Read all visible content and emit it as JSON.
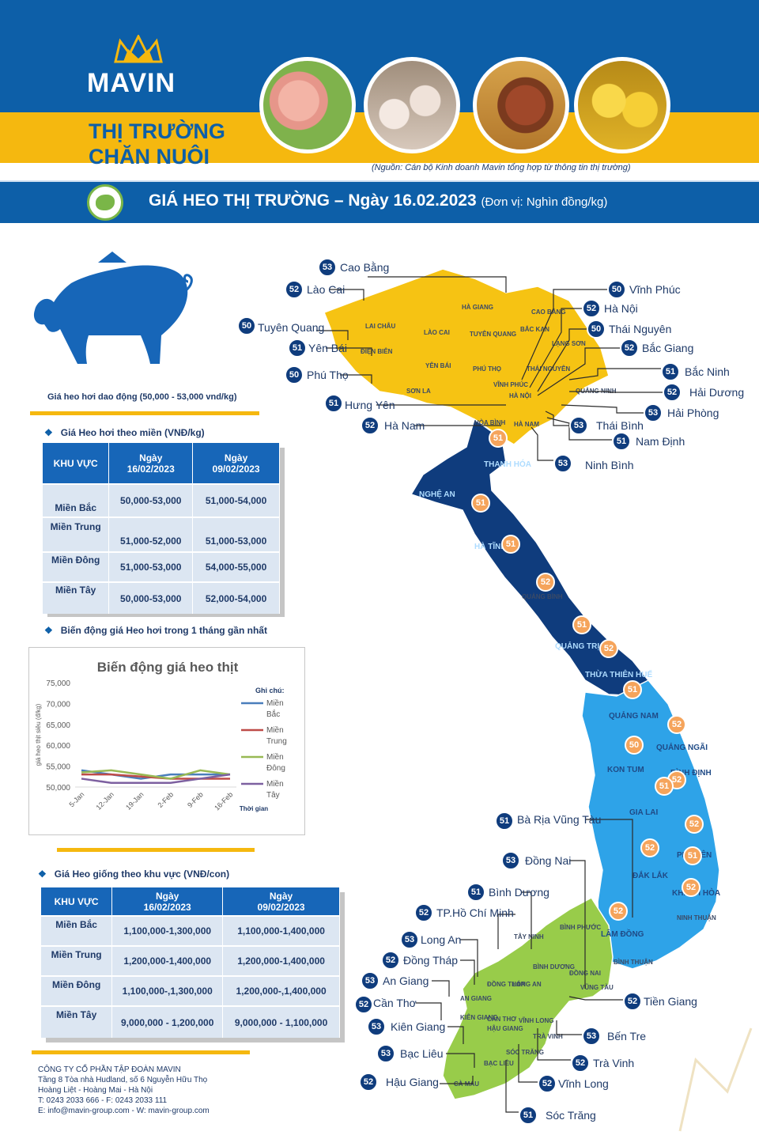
{
  "header": {
    "brand": "MAVIN",
    "title_line1": "THỊ TRƯỜNG",
    "title_line2": "CHĂN NUÔI",
    "source": "(Nguồn: Cán bộ Kinh doanh Mavin tổng hợp từ thông tin thị trường)",
    "banner_title": "GIÁ HEO THỊ TRƯỜNG – Ngày 16.02.2023",
    "banner_unit": "(Đơn vị: Nghìn đồng/kg)"
  },
  "left": {
    "range_note": "Giá heo hơi dao động (50,000 - 53,000 vnd/kg)",
    "section1": "Giá Heo hơi theo miền (VNĐ/kg)",
    "section2": "Biến động giá Heo hơi trong 1 tháng gần nhất",
    "section3": "Giá Heo giống theo khu vực (VNĐ/con)"
  },
  "table_live": {
    "headers": [
      "KHU VỰC",
      "Ngày\n16/02/2023",
      "Ngày\n09/02/2023"
    ],
    "rows": [
      [
        "Miền Bắc",
        "50,000-53,000",
        "51,000-54,000"
      ],
      [
        "Miền Trung",
        "51,000-52,000",
        "51,000-53,000"
      ],
      [
        "Miền Đông",
        "51,000-53,000",
        "54,000-55,000"
      ],
      [
        "Miền Tây",
        "50,000-53,000",
        "52,000-54,000"
      ]
    ]
  },
  "table_breed": {
    "headers": [
      "KHU VỰC",
      "Ngày\n16/02/2023",
      "Ngày\n09/02/2023"
    ],
    "rows": [
      [
        "Miền Bắc",
        "1,100,000-1,300,000",
        "1,100,000-1,400,000"
      ],
      [
        "Miền Trung",
        "1,200,000-1,400,000",
        "1,200,000-1,400,000"
      ],
      [
        "Miền Đông",
        "1,100,000-,1,300,000",
        "1,200,000-,1,400,000"
      ],
      [
        "Miền Tây",
        "9,000,000 - 1,200,000",
        "9,000,000 - 1,100,000"
      ]
    ]
  },
  "chart_data": {
    "type": "line",
    "title": "Biến động giá heo thịt",
    "ylabel": "giá heo thịt siêu (đ/kg)",
    "xlabel": "Thời gian",
    "legend_title": "Ghi chú:",
    "legend_position": "right",
    "x": [
      "5-Jan",
      "12-Jan",
      "19-Jan",
      "2-Feb",
      "9-Feb",
      "16-Feb"
    ],
    "ylim": [
      50000,
      75000
    ],
    "yticks": [
      "50,000",
      "55,000",
      "60,000",
      "65,000",
      "70,000",
      "75,000"
    ],
    "series": [
      {
        "name": "Miền Bắc",
        "color": "#4a7ebb",
        "values": [
          54000,
          53000,
          52000,
          53000,
          53000,
          53000
        ]
      },
      {
        "name": "Miền Trung",
        "color": "#be4b48",
        "values": [
          53000,
          53000,
          52500,
          52000,
          52000,
          52000
        ]
      },
      {
        "name": "Miền Đông",
        "color": "#98b954",
        "values": [
          53500,
          54000,
          53000,
          52000,
          54000,
          53000
        ]
      },
      {
        "name": "Miền Tây",
        "color": "#7d60a0",
        "values": [
          52000,
          51000,
          51000,
          51000,
          52000,
          53000
        ]
      }
    ]
  },
  "map": {
    "north": [
      {
        "name": "Cao Bằng",
        "price": "53"
      },
      {
        "name": "Lào Cai",
        "price": "52"
      },
      {
        "name": "Tuyên Quang",
        "price": "50"
      },
      {
        "name": "Yên Bái",
        "price": "51"
      },
      {
        "name": "Phú Thọ",
        "price": "50"
      },
      {
        "name": "Hưng Yên",
        "price": "51"
      },
      {
        "name": "Hà Nam",
        "price": "52"
      },
      {
        "name": "Vĩnh Phúc",
        "price": "50"
      },
      {
        "name": "Hà Nội",
        "price": "52"
      },
      {
        "name": "Thái Nguyên",
        "price": "50"
      },
      {
        "name": "Bắc Giang",
        "price": "52"
      },
      {
        "name": "Bắc Ninh",
        "price": "51"
      },
      {
        "name": "Hải Dương",
        "price": "52"
      },
      {
        "name": "Hải Phòng",
        "price": "53"
      },
      {
        "name": "Thái Bình",
        "price": "53"
      },
      {
        "name": "Nam Định",
        "price": "51"
      },
      {
        "name": "Ninh Bình",
        "price": "53"
      }
    ],
    "central": [
      "51",
      "51",
      "51",
      "52",
      "51",
      "52",
      "51",
      "52",
      "50",
      "52",
      "51",
      "52",
      "52",
      "51",
      "52",
      "52"
    ],
    "south": [
      {
        "name": "Bà Rịa Vũng Tàu",
        "price": "51"
      },
      {
        "name": "Đồng Nai",
        "price": "53"
      },
      {
        "name": "Bình Dương",
        "price": "51"
      },
      {
        "name": "TP.Hồ Chí Minh",
        "price": "52"
      },
      {
        "name": "Long An",
        "price": "53"
      },
      {
        "name": "Đồng Tháp",
        "price": "52"
      },
      {
        "name": "An Giang",
        "price": "53"
      },
      {
        "name": "Cần Thơ",
        "price": "52"
      },
      {
        "name": "Kiên Giang",
        "price": "53"
      },
      {
        "name": "Bạc Liêu",
        "price": "53"
      },
      {
        "name": "Hậu Giang",
        "price": "52"
      },
      {
        "name": "Tiền Giang",
        "price": "52"
      },
      {
        "name": "Bến Tre",
        "price": "53"
      },
      {
        "name": "Trà Vinh",
        "price": "52"
      },
      {
        "name": "Vĩnh Long",
        "price": "52"
      },
      {
        "name": "Sóc Trăng",
        "price": "51"
      }
    ],
    "region_labels": {
      "thanh_hoa": "THANH HÓA",
      "nghe_an": "NGHỆ AN",
      "ha_tinh": "HÀ TĨNH",
      "quang_binh": "QUẢNG BÌNH",
      "quang_tri": "QUẢNG TRỊ",
      "hue": "THỪA THIÊN HUẾ",
      "quang_nam": "QUẢNG NAM",
      "quang_ngai": "QUẢNG NGÃI",
      "kon_tum": "KON TUM",
      "binh_dinh": "BÌNH ĐỊNH",
      "gia_lai": "GIA LAI",
      "phu_yen": "PHÚ YÊN",
      "dak_lak": "ĐẮK LẮK",
      "khanh_hoa": "KHÁNH HÒA",
      "lam_dong": "LÂM ĐỒNG",
      "ninh_thuan": "NINH THUẬN",
      "binh_thuan": "BÌNH THUẬN",
      "ha_giang": "HÀ GIANG",
      "cao_bang_m": "CAO BẰNG",
      "lai_chau": "LAI CHÂU",
      "lao_cai_m": "LÀO CAI",
      "tuyen_quang_m": "TUYÊN QUANG",
      "bac_kan": "BẮC KẠN",
      "lang_son": "LẠNG SƠN",
      "dien_bien": "ĐIỆN BIÊN",
      "yen_bai_m": "YÊN BÁI",
      "son_la": "SƠN LA",
      "phu_tho_m": "PHÚ THỌ",
      "vinh_phuc_m": "VĨNH PHÚC",
      "thai_nguyen_m": "THÁI NGUYÊN",
      "ha_noi_m": "HÀ NỘI",
      "quang_ninh": "QUẢNG NINH",
      "hoa_binh": "HÒA BÌNH",
      "ha_nam_m": "HÀ NAM",
      "binh_phuoc": "BÌNH PHƯỚC",
      "tay_ninh": "TÂY NINH",
      "dong_nai_m": "ĐỒNG NAI",
      "long_an_m": "LONG AN",
      "dong_thap_m": "ĐỒNG THÁP",
      "an_giang_m": "AN GIANG",
      "kien_giang_m": "KIÊN GIANG",
      "can_tho_m": "CẦN THƠ",
      "vinh_long_m": "VĨNH LONG",
      "tra_vinh_m": "TRÀ VINH",
      "hau_giang_m": "HẬU GIANG",
      "soc_trang_m": "SÓC TRĂNG",
      "bac_lieu_m": "BẠC LIÊU",
      "ca_mau": "CÀ MAU",
      "binh_duong_m": "BÌNH DƯƠNG",
      "vung_tau_m": "VŨNG TÀU"
    }
  },
  "footer": {
    "company": "CÔNG TY CỔ PHẦN TẬP ĐOÀN MAVIN",
    "address1": "Tầng 8 Tòa nhà Hudland, số 6 Nguyễn Hữu Thọ",
    "address2": "Hoàng Liệt - Hoàng Mai - Hà Nội",
    "phone": "T: 0243 2033 666 - F: 0243 2033 111",
    "web": "E: info@mavin-group.com -  W: mavin-group.com"
  },
  "colors": {
    "brand_blue": "#0d5fa8",
    "brand_yellow": "#f5b80f",
    "north_region": "#f6c313",
    "central_region": "#0f3c7d",
    "highlands_region": "#2ea3e8",
    "south_region": "#98cc4a",
    "price_pin_dark": "#0f3c7d",
    "price_pin_orange": "#f5a45b"
  },
  "icons": [
    "crown-icon",
    "pig-icon",
    "pig-head-icon",
    "diamond-bullet-icon",
    "triangle-icon"
  ]
}
